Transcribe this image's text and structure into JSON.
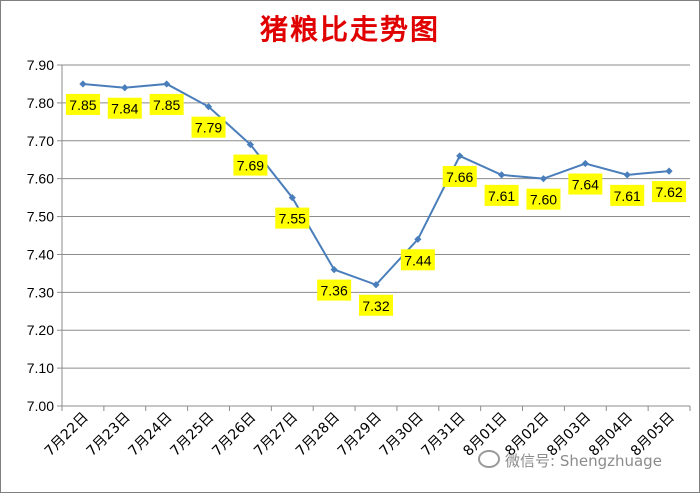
{
  "chart_data": {
    "type": "line",
    "title": "猪粮比走势图",
    "categories": [
      "7月22日",
      "7月23日",
      "7月24日",
      "7月25日",
      "7月26日",
      "7月27日",
      "7月28日",
      "7月29日",
      "7月30日",
      "7月31日",
      "8月01日",
      "8月02日",
      "8月03日",
      "8月04日",
      "8月05日"
    ],
    "series": [
      {
        "values": [
          7.85,
          7.84,
          7.85,
          7.79,
          7.69,
          7.55,
          7.36,
          7.32,
          7.44,
          7.66,
          7.61,
          7.6,
          7.64,
          7.61,
          7.62
        ]
      }
    ],
    "ylim": [
      7.0,
      7.9
    ],
    "yticks": [
      "7.00",
      "7.10",
      "7.20",
      "7.30",
      "7.40",
      "7.50",
      "7.60",
      "7.70",
      "7.80",
      "7.90"
    ],
    "grid": true,
    "legend": "none",
    "line_color": "#4a7ebb",
    "label_bg_color": "#ffff00"
  },
  "watermark": {
    "text": "微信号: Shengzhuage"
  }
}
